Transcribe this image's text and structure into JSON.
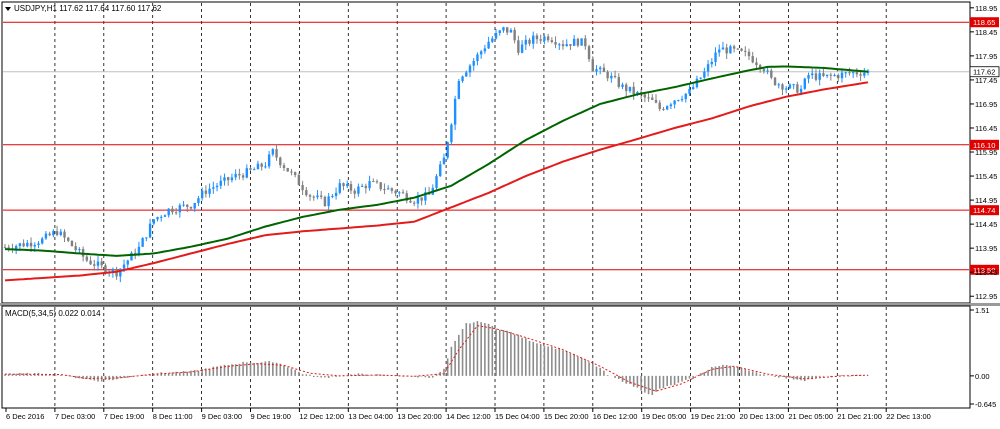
{
  "colors": {
    "bull": "#1e90ff",
    "bear": "#808080",
    "ma_fast": "#006400",
    "ma_slow": "#e31b1b",
    "level": "#e00000",
    "grid": "#000000",
    "macd_hist": "#8c8c8c",
    "macd_signal": "#e31b1b",
    "bid_tag_bg": "#ffffff"
  },
  "main_header": "USDJPY,H1  117.62 117.64 117.60 117.62",
  "macd_header": "MACD(5,34,5) 0.022 0.014",
  "chart_data": [
    {
      "type": "candlestick",
      "symbol": "USDJPY",
      "timeframe": "H1",
      "ohlc_last": {
        "open": 117.62,
        "high": 117.64,
        "low": 117.6,
        "close": 117.62
      },
      "y_ticks": [
        "118.95",
        "118.45",
        "117.95",
        "117.45",
        "116.95",
        "116.45",
        "115.95",
        "115.45",
        "114.95",
        "114.45",
        "113.95",
        "113.45",
        "112.95"
      ],
      "ylim": [
        112.83,
        119.05
      ],
      "x_ticks": [
        "6 Dec 2016",
        "7 Dec 03:00",
        "7 Dec 19:00",
        "8 Dec 11:00",
        "9 Dec 03:00",
        "9 Dec 19:00",
        "12 Dec 12:00",
        "13 Dec 04:00",
        "13 Dec 20:00",
        "14 Dec 12:00",
        "15 Dec 04:00",
        "15 Dec 20:00",
        "16 Dec 12:00",
        "19 Dec 05:00",
        "19 Dec 21:00",
        "20 Dec 13:00",
        "21 Dec 05:00",
        "21 Dec 21:00",
        "22 Dec 13:00"
      ],
      "h_levels": [
        {
          "label": "118.65",
          "value": 118.65
        },
        {
          "label": "116.10",
          "value": 116.1
        },
        {
          "label": "114.74",
          "value": 114.74
        },
        {
          "label": "113.50",
          "value": 113.5
        }
      ],
      "bid_level": {
        "label": "117.62",
        "value": 117.62
      },
      "close_anchors": [
        [
          0,
          113.97
        ],
        [
          6,
          114.05
        ],
        [
          10,
          114.12
        ],
        [
          14,
          114.3
        ],
        [
          18,
          114.0
        ],
        [
          22,
          113.7
        ],
        [
          26,
          113.55
        ],
        [
          30,
          113.45
        ],
        [
          36,
          113.95
        ],
        [
          40,
          114.55
        ],
        [
          44,
          114.75
        ],
        [
          50,
          114.85
        ],
        [
          54,
          115.15
        ],
        [
          58,
          115.3
        ],
        [
          62,
          115.45
        ],
        [
          66,
          115.55
        ],
        [
          70,
          115.7
        ],
        [
          72,
          115.95
        ],
        [
          74,
          115.75
        ],
        [
          78,
          115.4
        ],
        [
          82,
          115.05
        ],
        [
          86,
          114.9
        ],
        [
          90,
          115.25
        ],
        [
          94,
          115.15
        ],
        [
          98,
          115.3
        ],
        [
          102,
          115.2
        ],
        [
          106,
          115.1
        ],
        [
          110,
          114.95
        ],
        [
          114,
          115.05
        ],
        [
          118,
          115.8
        ],
        [
          120,
          116.6
        ],
        [
          122,
          117.5
        ],
        [
          126,
          117.85
        ],
        [
          130,
          118.25
        ],
        [
          134,
          118.5
        ],
        [
          136,
          118.45
        ],
        [
          138,
          118.1
        ],
        [
          142,
          118.3
        ],
        [
          146,
          118.35
        ],
        [
          150,
          118.2
        ],
        [
          154,
          118.25
        ],
        [
          156,
          118.2
        ],
        [
          158,
          117.7
        ],
        [
          162,
          117.55
        ],
        [
          166,
          117.3
        ],
        [
          170,
          117.15
        ],
        [
          174,
          117.0
        ],
        [
          176,
          116.85
        ],
        [
          180,
          117.05
        ],
        [
          184,
          117.2
        ],
        [
          188,
          117.6
        ],
        [
          192,
          118.1
        ],
        [
          196,
          118.05
        ],
        [
          200,
          117.95
        ],
        [
          204,
          117.7
        ],
        [
          206,
          117.45
        ],
        [
          210,
          117.3
        ],
        [
          214,
          117.25
        ],
        [
          216,
          117.55
        ],
        [
          220,
          117.5
        ],
        [
          224,
          117.55
        ],
        [
          228,
          117.6
        ],
        [
          232,
          117.62
        ]
      ],
      "ma_fast_anchors": [
        [
          0,
          113.93
        ],
        [
          10,
          113.9
        ],
        [
          20,
          113.84
        ],
        [
          30,
          113.79
        ],
        [
          40,
          113.84
        ],
        [
          50,
          113.98
        ],
        [
          60,
          114.15
        ],
        [
          70,
          114.4
        ],
        [
          80,
          114.6
        ],
        [
          90,
          114.75
        ],
        [
          100,
          114.85
        ],
        [
          110,
          115.0
        ],
        [
          120,
          115.25
        ],
        [
          130,
          115.7
        ],
        [
          140,
          116.2
        ],
        [
          150,
          116.6
        ],
        [
          160,
          116.95
        ],
        [
          170,
          117.15
        ],
        [
          180,
          117.3
        ],
        [
          190,
          117.48
        ],
        [
          200,
          117.65
        ],
        [
          205,
          117.72
        ],
        [
          210,
          117.73
        ],
        [
          220,
          117.7
        ],
        [
          232,
          117.62
        ]
      ],
      "ma_slow_anchors": [
        [
          0,
          113.28
        ],
        [
          20,
          113.38
        ],
        [
          30,
          113.46
        ],
        [
          40,
          113.64
        ],
        [
          50,
          113.84
        ],
        [
          60,
          114.04
        ],
        [
          70,
          114.22
        ],
        [
          80,
          114.3
        ],
        [
          90,
          114.36
        ],
        [
          100,
          114.42
        ],
        [
          110,
          114.5
        ],
        [
          120,
          114.8
        ],
        [
          130,
          115.1
        ],
        [
          140,
          115.45
        ],
        [
          150,
          115.75
        ],
        [
          160,
          116.0
        ],
        [
          170,
          116.22
        ],
        [
          180,
          116.45
        ],
        [
          190,
          116.65
        ],
        [
          200,
          116.9
        ],
        [
          210,
          117.1
        ],
        [
          220,
          117.25
        ],
        [
          232,
          117.4
        ]
      ]
    },
    {
      "type": "bar",
      "indicator": "MACD(5,34,5)",
      "values_last": {
        "main": 0.022,
        "signal": 0.014
      },
      "y_ticks": [
        "1.51",
        "0.00",
        "-0.645"
      ],
      "ylim": [
        -0.645,
        1.51
      ],
      "hist_anchors": [
        [
          0,
          0.05
        ],
        [
          10,
          0.05
        ],
        [
          15,
          0.02
        ],
        [
          20,
          -0.05
        ],
        [
          25,
          -0.12
        ],
        [
          30,
          -0.08
        ],
        [
          35,
          0.0
        ],
        [
          40,
          0.05
        ],
        [
          45,
          0.08
        ],
        [
          50,
          0.1
        ],
        [
          55,
          0.18
        ],
        [
          60,
          0.25
        ],
        [
          65,
          0.32
        ],
        [
          68,
          0.3
        ],
        [
          72,
          0.33
        ],
        [
          75,
          0.25
        ],
        [
          80,
          0.05
        ],
        [
          85,
          -0.05
        ],
        [
          90,
          0.0
        ],
        [
          95,
          0.04
        ],
        [
          100,
          0.02
        ],
        [
          105,
          0.0
        ],
        [
          110,
          -0.02
        ],
        [
          115,
          -0.03
        ],
        [
          118,
          0.15
        ],
        [
          120,
          0.65
        ],
        [
          124,
          1.2
        ],
        [
          128,
          1.25
        ],
        [
          132,
          1.1
        ],
        [
          134,
          1.05
        ],
        [
          136,
          1.0
        ],
        [
          140,
          0.85
        ],
        [
          145,
          0.7
        ],
        [
          150,
          0.6
        ],
        [
          155,
          0.4
        ],
        [
          160,
          0.18
        ],
        [
          162,
          0.02
        ],
        [
          166,
          -0.12
        ],
        [
          170,
          -0.28
        ],
        [
          174,
          -0.45
        ],
        [
          176,
          -0.3
        ],
        [
          180,
          -0.2
        ],
        [
          185,
          -0.05
        ],
        [
          190,
          0.2
        ],
        [
          194,
          0.25
        ],
        [
          198,
          0.2
        ],
        [
          200,
          0.1
        ],
        [
          205,
          0.02
        ],
        [
          210,
          -0.05
        ],
        [
          215,
          -0.1
        ],
        [
          220,
          -0.02
        ],
        [
          225,
          0.0
        ],
        [
          232,
          0.02
        ]
      ],
      "signal_anchors": [
        [
          0,
          0.04
        ],
        [
          15,
          0.03
        ],
        [
          22,
          -0.06
        ],
        [
          30,
          -0.05
        ],
        [
          40,
          0.04
        ],
        [
          50,
          0.09
        ],
        [
          60,
          0.22
        ],
        [
          68,
          0.28
        ],
        [
          75,
          0.24
        ],
        [
          82,
          0.06
        ],
        [
          90,
          0.0
        ],
        [
          100,
          0.02
        ],
        [
          110,
          -0.01
        ],
        [
          118,
          0.05
        ],
        [
          122,
          0.6
        ],
        [
          127,
          1.15
        ],
        [
          132,
          1.08
        ],
        [
          140,
          0.88
        ],
        [
          150,
          0.6
        ],
        [
          160,
          0.22
        ],
        [
          168,
          -0.15
        ],
        [
          175,
          -0.35
        ],
        [
          182,
          -0.18
        ],
        [
          190,
          0.15
        ],
        [
          196,
          0.22
        ],
        [
          205,
          0.04
        ],
        [
          215,
          -0.07
        ],
        [
          225,
          0.0
        ],
        [
          232,
          0.014
        ]
      ]
    }
  ]
}
